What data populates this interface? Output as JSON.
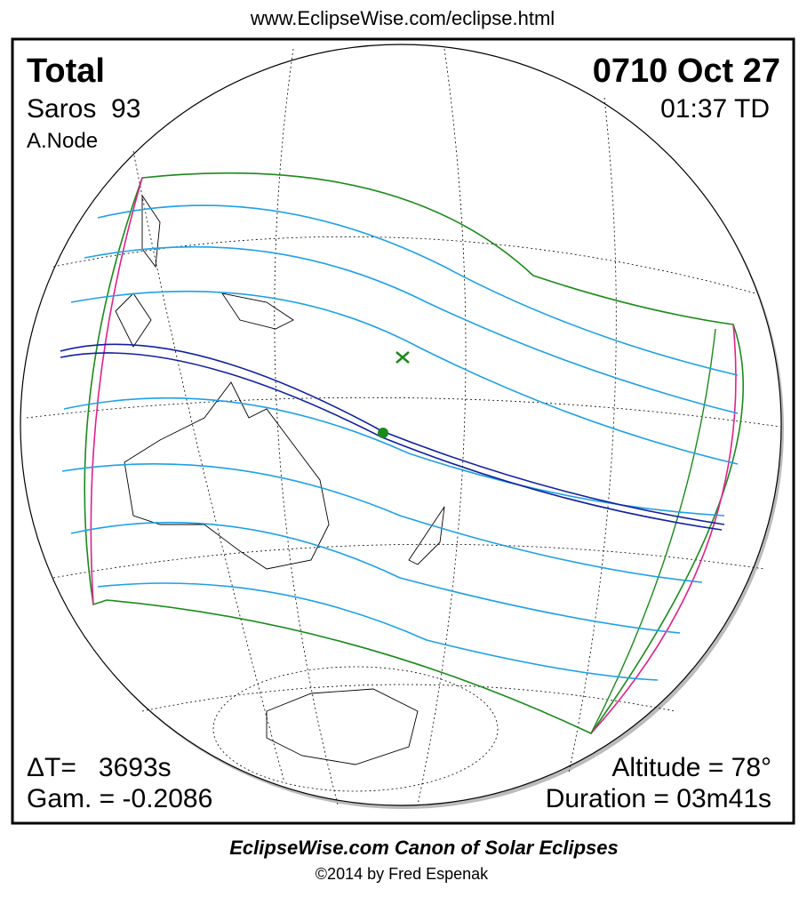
{
  "header": {
    "url": "www.EclipseWise.com/eclipse.html"
  },
  "info": {
    "type": "Total",
    "saros": "Saros  93",
    "node": "A.Node",
    "date": "0710 Oct 27",
    "time": "01:37 TD",
    "delta_t": "ΔT=   3693s",
    "gamma": "Gam. = -0.2086",
    "altitude": "Altitude = 78°",
    "duration": "Duration = 03m41s"
  },
  "footer": {
    "title": "EclipseWise.com Canon of Solar Eclipses",
    "credit": "©2014 by Fred Espenak"
  }
}
